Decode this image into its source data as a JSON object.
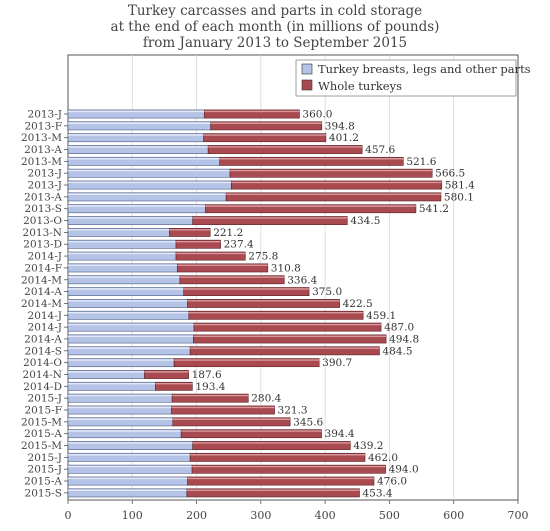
{
  "chart_data": {
    "type": "bar",
    "orientation": "horizontal",
    "stacked": true,
    "title": [
      "Turkey carcasses and parts in cold storage",
      "at the end of each month (in millions of pounds)",
      "from January 2013 to September 2015"
    ],
    "categories": [
      "2013-J",
      "2013-F",
      "2013-M",
      "2013-A",
      "2013-M",
      "2013-J",
      "2013-J",
      "2013-A",
      "2013-S",
      "2013-O",
      "2013-N",
      "2013-D",
      "2014-J",
      "2014-F",
      "2014-M",
      "2014-A",
      "2014-M",
      "2014-J",
      "2014-J",
      "2014-A",
      "2014-S",
      "2014-O",
      "2014-N",
      "2014-D",
      "2015-J",
      "2015-F",
      "2015-M",
      "2015-A",
      "2015-M",
      "2015-J",
      "2015-J",
      "2015-A",
      "2015-S"
    ],
    "series": [
      {
        "name": "Turkey breasts, legs and other parts",
        "color": "#b4c3e6",
        "values": [
          212,
          222,
          211,
          218,
          236,
          252,
          254,
          246,
          214,
          194,
          158,
          168,
          168,
          170,
          174,
          180,
          186,
          188,
          196,
          195,
          190,
          165,
          119,
          136,
          162,
          161,
          163,
          176,
          194,
          190,
          193,
          186,
          185
        ]
      },
      {
        "name": "Whole turkeys",
        "color": "#a84a50",
        "values": [
          148.0,
          172.8,
          190.2,
          239.6,
          285.6,
          314.5,
          327.4,
          334.1,
          327.2,
          240.5,
          63.2,
          69.4,
          107.8,
          140.8,
          162.4,
          195.0,
          236.5,
          271.1,
          291.0,
          299.8,
          294.5,
          225.7,
          68.6,
          57.4,
          118.4,
          160.3,
          182.6,
          218.4,
          245.2,
          272.0,
          301.0,
          290.0,
          268.4
        ]
      }
    ],
    "totals": [
      "360.0",
      "394.8",
      "401.2",
      "457.6",
      "521.6",
      "566.5",
      "581.4",
      "580.1",
      "541.2",
      "434.5",
      "221.2",
      "237.4",
      "275.8",
      "310.8",
      "336.4",
      "375.0",
      "422.5",
      "459.1",
      "487.0",
      "494.8",
      "484.5",
      "390.7",
      "187.6",
      "193.4",
      "280.4",
      "321.3",
      "345.6",
      "394.4",
      "439.2",
      "462.0",
      "494.0",
      "476.0",
      "453.4"
    ],
    "xlim": [
      0,
      700
    ],
    "xticks": [
      "0",
      "100",
      "200",
      "300",
      "400",
      "500",
      "600",
      "700"
    ],
    "legend_position": "top-right"
  }
}
